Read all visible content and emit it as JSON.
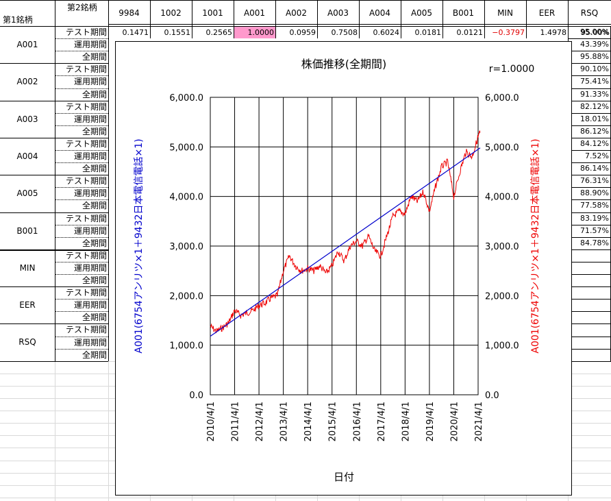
{
  "sheet": {
    "corner_second_label": "第2銘柄",
    "corner_first_label": "第1銘柄",
    "columns": [
      "9984",
      "1002",
      "1001",
      "A001",
      "A002",
      "A003",
      "A004",
      "A005",
      "B001",
      "MIN",
      "EER",
      "RSQ"
    ],
    "first_row_values": [
      "0.1471",
      "0.1551",
      "0.2565",
      "1.0000",
      "0.0959",
      "0.7508",
      "0.6024",
      "0.0181",
      "0.0121",
      "−0.3797",
      "1.4978",
      "95.00%"
    ],
    "groups": [
      {
        "name": "A001",
        "rows": [
          {
            "period": "テスト期間",
            "rsq": "95.00%"
          },
          {
            "period": "運用期間",
            "rsq": "43.39%"
          },
          {
            "period": "全期間",
            "rsq": "95.88%"
          }
        ]
      },
      {
        "name": "A002",
        "rows": [
          {
            "period": "テスト期間",
            "rsq": "90.10%"
          },
          {
            "period": "運用期間",
            "rsq": "75.41%"
          },
          {
            "period": "全期間",
            "rsq": "91.33%"
          }
        ]
      },
      {
        "name": "A003",
        "rows": [
          {
            "period": "テスト期間",
            "rsq": "82.12%"
          },
          {
            "period": "運用期間",
            "rsq": "18.01%"
          },
          {
            "period": "全期間",
            "rsq": "86.12%"
          }
        ]
      },
      {
        "name": "A004",
        "rows": [
          {
            "period": "テスト期間",
            "rsq": "84.12%"
          },
          {
            "period": "運用期間",
            "rsq": "7.52%"
          },
          {
            "period": "全期間",
            "rsq": "86.14%"
          }
        ]
      },
      {
        "name": "A005",
        "rows": [
          {
            "period": "テスト期間",
            "rsq": "76.31%"
          },
          {
            "period": "運用期間",
            "rsq": "88.90%"
          },
          {
            "period": "全期間",
            "rsq": "77.58%"
          }
        ]
      },
      {
        "name": "B001",
        "rows": [
          {
            "period": "テスト期間",
            "rsq": "83.19%"
          },
          {
            "period": "運用期間",
            "rsq": "71.57%"
          },
          {
            "period": "全期間",
            "rsq": "84.78%"
          }
        ]
      },
      {
        "name": "MIN",
        "rows": [
          {
            "period": "テスト期間",
            "rsq": ""
          },
          {
            "period": "運用期間",
            "rsq": ""
          },
          {
            "period": "全期間",
            "rsq": ""
          }
        ]
      },
      {
        "name": "EER",
        "rows": [
          {
            "period": "テスト期間",
            "rsq": ""
          },
          {
            "period": "運用期間",
            "rsq": ""
          },
          {
            "period": "全期間",
            "rsq": ""
          }
        ]
      },
      {
        "name": "RSQ",
        "rows": [
          {
            "period": "テスト期間",
            "rsq": ""
          },
          {
            "period": "運用期間",
            "rsq": ""
          },
          {
            "period": "全期間",
            "rsq": ""
          }
        ]
      }
    ],
    "highlight_color": "#ff99cc",
    "negative_color": "#e00000"
  },
  "chart": {
    "title": "株価推移(全期間)",
    "r_label": "r=1.0000",
    "xlabel": "日付",
    "ylabel_left": "A001(6754アンリツ×1＋9432日本電信電話×1)",
    "ylabel_right": "A001(6754アンリツ×1＋9432日本電信電話×1)",
    "y_ticks": [
      "0.0",
      "1,000.0",
      "2,000.0",
      "3,000.0",
      "4,000.0",
      "5,000.0",
      "6,000.0"
    ],
    "x_ticks": [
      "2010/4/1",
      "2011/4/1",
      "2012/4/1",
      "2013/4/1",
      "2014/4/1",
      "2015/4/1",
      "2016/4/1",
      "2017/4/1",
      "2018/4/1",
      "2019/4/1",
      "2020/4/1",
      "2021/4/1"
    ],
    "left_axis_color": "#0000cc",
    "right_axis_color": "#ee0000"
  },
  "chart_data": {
    "type": "line",
    "title": "株価推移(全期間)",
    "xlabel": "日付",
    "ylabel": "A001(6754アンリツ×1＋9432日本電信電話×1)",
    "ylim": [
      0,
      6000
    ],
    "grid": true,
    "series": [
      {
        "name": "",
        "color": "#ee0000",
        "x": [
          "2010/4/1",
          "2010/7/1",
          "2010/10/1",
          "2011/1/1",
          "2011/4/1",
          "2011/7/1",
          "2011/10/1",
          "2012/1/1",
          "2012/4/1",
          "2012/7/1",
          "2012/10/1",
          "2013/1/1",
          "2013/4/1",
          "2013/7/1",
          "2013/10/1",
          "2014/1/1",
          "2014/4/1",
          "2014/7/1",
          "2014/10/1",
          "2015/1/1",
          "2015/4/1",
          "2015/7/1",
          "2015/10/1",
          "2016/1/1",
          "2016/4/1",
          "2016/7/1",
          "2016/10/1",
          "2017/1/1",
          "2017/4/1",
          "2017/7/1",
          "2017/10/1",
          "2018/1/1",
          "2018/4/1",
          "2018/7/1",
          "2018/10/1",
          "2019/1/1",
          "2019/4/1",
          "2019/7/1",
          "2019/10/1",
          "2020/1/1",
          "2020/4/1",
          "2020/7/1",
          "2020/10/1",
          "2021/1/1",
          "2021/4/1",
          "2021/5/1"
        ],
        "y": [
          1380,
          1280,
          1350,
          1450,
          1700,
          1600,
          1650,
          1700,
          1800,
          1850,
          1950,
          2000,
          2500,
          2800,
          2600,
          2500,
          2550,
          2500,
          2600,
          2450,
          2600,
          2900,
          2700,
          3000,
          3100,
          3000,
          3200,
          2900,
          2800,
          3200,
          3600,
          3700,
          3650,
          4000,
          3900,
          4100,
          3700,
          4200,
          4600,
          4700,
          4000,
          4500,
          4900,
          4800,
          5200,
          5300
        ]
      },
      {
        "name": "",
        "color": "#0000cc",
        "x": [
          "2010/4/1",
          "2021/5/1"
        ],
        "y": [
          1180,
          4980
        ]
      }
    ]
  }
}
